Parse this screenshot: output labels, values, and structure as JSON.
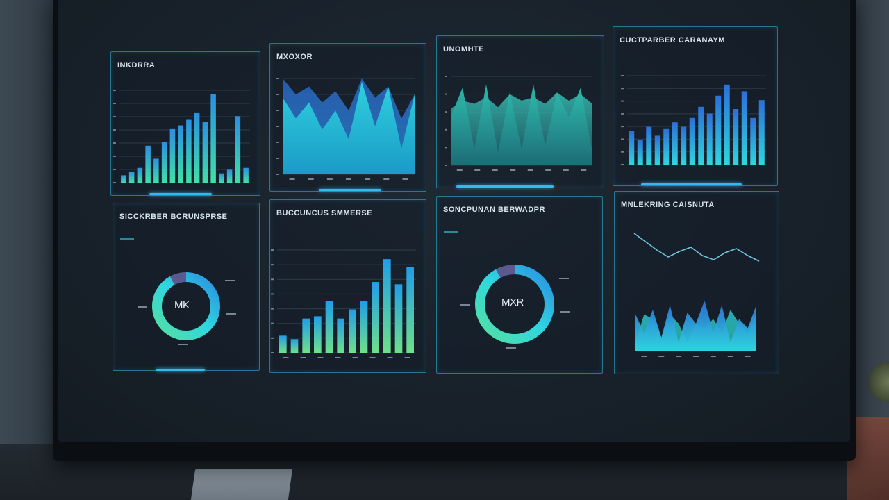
{
  "panels": {
    "p1": {
      "title": "INKDRRA"
    },
    "p2": {
      "title": "MXOXOR"
    },
    "p3": {
      "title": "UNOMHTE"
    },
    "p4": {
      "title": "CUCTPARBER CARANAYM"
    },
    "p5": {
      "title": "SICCKRBER BCRUNSPRSE",
      "center": "MK"
    },
    "p6": {
      "title": "BUCCUNCUS SMMERSE"
    },
    "p7": {
      "title": "SONCPUNAN BERWADPR",
      "center": "MXR"
    },
    "p8": {
      "title": "MNLEKRING CAISNUTA"
    }
  },
  "colors": {
    "screen_bg": "#18212a",
    "panel_border": "#38bee6",
    "accent_blue": "#2b8fe0",
    "accent_cyan": "#2fd6e0",
    "accent_green": "#55e0a0",
    "slice_purple": "#5b5a8e"
  },
  "chart_data": [
    {
      "type": "bar",
      "values": [
        4,
        6,
        8,
        20,
        13,
        22,
        29,
        31,
        34,
        38,
        33,
        48,
        5,
        7,
        36,
        8
      ]
    },
    {
      "type": "area",
      "series": [
        {
          "values": [
            48,
            35,
            45,
            28,
            40,
            22,
            58,
            30,
            55,
            16,
            50
          ]
        },
        {
          "values": [
            60,
            50,
            55,
            45,
            52,
            40,
            60,
            48,
            55,
            35,
            50
          ]
        }
      ]
    },
    {
      "type": "area",
      "series": [
        {
          "values": [
            30,
            48,
            10,
            50,
            8,
            45,
            10,
            50,
            12,
            45,
            30,
            48,
            8
          ]
        },
        {
          "values": [
            35,
            40,
            38,
            42,
            36,
            44,
            40,
            42,
            38,
            45,
            40,
            44,
            38
          ]
        }
      ]
    },
    {
      "type": "bar",
      "values": [
        30,
        22,
        34,
        26,
        32,
        38,
        34,
        42,
        52,
        46,
        62,
        72,
        50,
        66,
        42,
        58
      ]
    },
    {
      "type": "pie",
      "values": [
        92,
        8
      ]
    },
    {
      "type": "bar",
      "values": [
        15,
        12,
        30,
        32,
        45,
        30,
        38,
        45,
        62,
        82,
        60,
        75
      ]
    },
    {
      "type": "pie",
      "values": [
        92,
        8
      ]
    },
    {
      "type": "area",
      "series": [
        {
          "values": [
            40,
            20,
            45,
            15,
            50,
            10,
            42,
            30,
            55,
            20,
            50,
            10,
            35,
            25,
            50
          ]
        },
        {
          "values": [
            10,
            40,
            35,
            15,
            40,
            30,
            10,
            30,
            25,
            35,
            20,
            45,
            30,
            20,
            40
          ]
        }
      ]
    }
  ]
}
